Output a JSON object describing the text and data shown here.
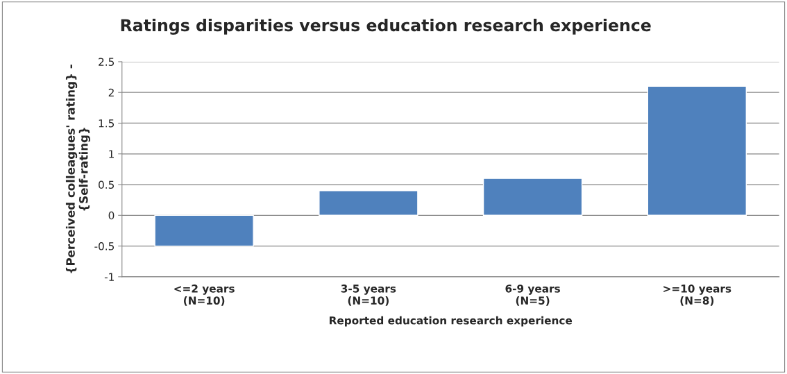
{
  "chart_data": {
    "type": "bar",
    "title": "Ratings disparities versus education research experience",
    "xlabel": "Reported education research experience",
    "ylabel": "{Perceived colleagues' rating} -\n{Self-rating}",
    "categories": [
      "<=2 years\n(N=10)",
      "3-5 years\n(N=10)",
      "6-9 years\n(N=5)",
      ">=10 years\n(N=8)"
    ],
    "values": [
      -0.5,
      0.4,
      0.6,
      2.1
    ],
    "color": "#4f81bd",
    "ylim": [
      -1,
      2.5
    ],
    "yticks": [
      -1,
      -0.5,
      0,
      0.5,
      1,
      1.5,
      2,
      2.5
    ],
    "grid": "y"
  }
}
